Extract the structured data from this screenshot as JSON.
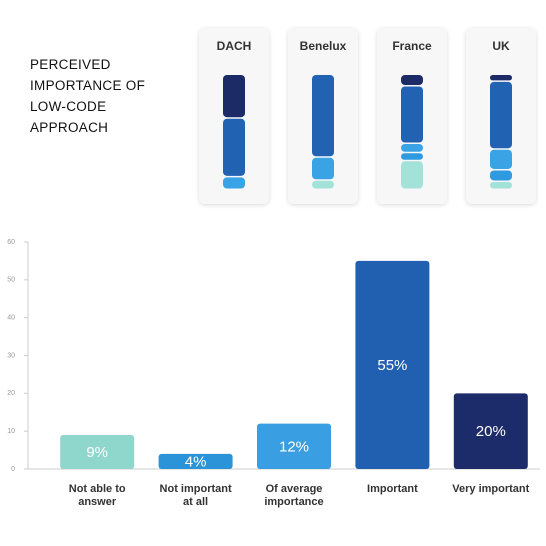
{
  "chart_data": [
    {
      "type": "bar",
      "title": "PERCEIVED IMPORTANCE OF LOW-CODE APPROACH",
      "categories": [
        "Not able to answer",
        "Not important at all",
        "Of average importance",
        "Important",
        "Very important"
      ],
      "values": [
        9,
        4,
        12,
        55,
        20
      ],
      "value_labels": [
        "9%",
        "4%",
        "12%",
        "55%",
        "20%"
      ],
      "colors": [
        "#8fd6cc",
        "#2b93d8",
        "#3a9fe2",
        "#2160b0",
        "#1c2c6a"
      ],
      "ylim": [
        0,
        60
      ],
      "yticks": [
        0,
        10,
        20,
        30,
        40,
        50,
        60
      ]
    },
    {
      "type": "stacked-bar",
      "categories": [
        "DACH",
        "Benelux",
        "France",
        "UK"
      ],
      "series": [
        {
          "color": "#a3e2d9",
          "values": [
            0,
            8,
            25,
            7
          ]
        },
        {
          "color": "#2f9ae0",
          "values": [
            0,
            0,
            7,
            10
          ]
        },
        {
          "color": "#3aa3e6",
          "values": [
            11,
            20,
            8,
            18
          ]
        },
        {
          "color": "#2262b3",
          "values": [
            51,
            72,
            50,
            59
          ]
        },
        {
          "color": "#1c2b66",
          "values": [
            38,
            0,
            10,
            6
          ]
        }
      ],
      "ylim": [
        0,
        100
      ]
    }
  ]
}
